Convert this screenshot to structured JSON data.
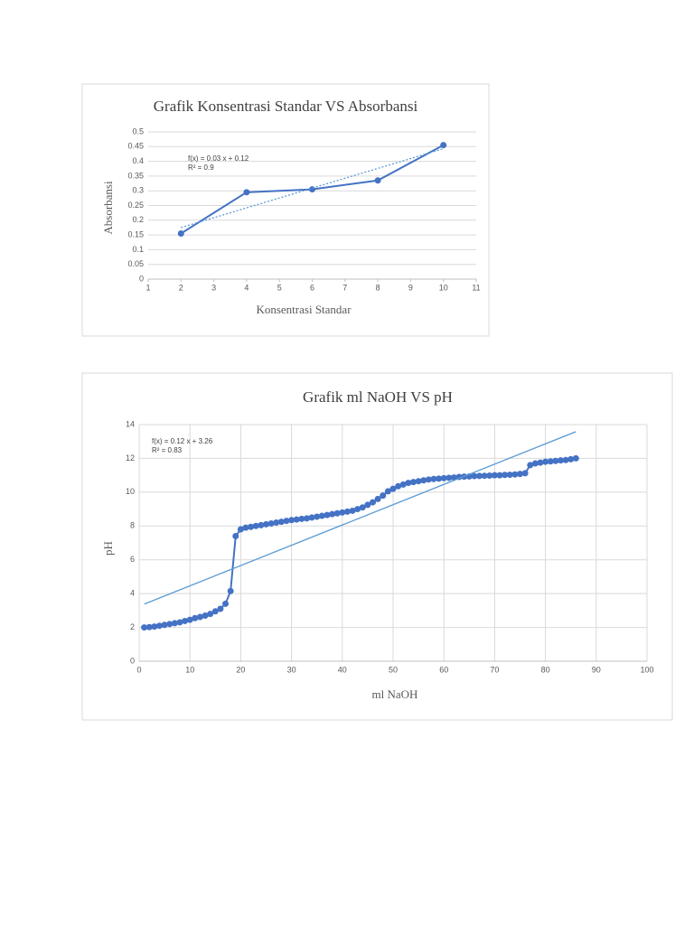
{
  "chart_data": [
    {
      "type": "line",
      "title": "Grafik Konsentrasi Standar VS Absorbansi",
      "xlabel": "Konsentrasi Standar",
      "ylabel": "Absorbansi",
      "annotations": [
        "f(x) = 0.03 x + 0.12",
        "R² = 0.9"
      ],
      "x": [
        2,
        4,
        6,
        8,
        10
      ],
      "series": [
        {
          "color": "#4472c4",
          "values": [
            0.155,
            0.295,
            0.305,
            0.335,
            0.455
          ]
        }
      ],
      "trendline": {
        "color": "#5b9bd5",
        "x": [
          2,
          10
        ],
        "values": [
          0.175,
          0.443
        ]
      },
      "xlim": [
        1,
        11
      ],
      "xticks": [
        1,
        2,
        3,
        4,
        5,
        6,
        7,
        8,
        9,
        10,
        11
      ],
      "ylim": [
        0,
        0.5
      ],
      "yticks": [
        0,
        0.05,
        0.1,
        0.15,
        0.2,
        0.25,
        0.3,
        0.35,
        0.4,
        0.45,
        0.5
      ],
      "grid": "y"
    },
    {
      "type": "line",
      "title": "Grafik ml NaOH VS pH",
      "xlabel": "ml NaOH",
      "ylabel": "pH",
      "annotations": [
        "f(x) = 0.12 x + 3.26",
        "R² = 0.83"
      ],
      "x": [
        1,
        2,
        3,
        4,
        5,
        6,
        7,
        8,
        9,
        10,
        11,
        12,
        13,
        14,
        15,
        16,
        17,
        18,
        19,
        20,
        21,
        22,
        23,
        24,
        25,
        26,
        27,
        28,
        29,
        30,
        31,
        32,
        33,
        34,
        35,
        36,
        37,
        38,
        39,
        40,
        41,
        42,
        43,
        44,
        45,
        46,
        47,
        48,
        49,
        50,
        51,
        52,
        53,
        54,
        55,
        56,
        57,
        58,
        59,
        60,
        61,
        62,
        63,
        64,
        65,
        66,
        67,
        68,
        69,
        70,
        71,
        72,
        73,
        74,
        75,
        76,
        77,
        78,
        79,
        80,
        81,
        82,
        83,
        84,
        85,
        86
      ],
      "series": [
        {
          "color": "#4472c4",
          "values": [
            2.0,
            2.02,
            2.05,
            2.1,
            2.15,
            2.2,
            2.25,
            2.3,
            2.38,
            2.45,
            2.55,
            2.62,
            2.7,
            2.8,
            2.95,
            3.1,
            3.4,
            4.15,
            7.4,
            7.8,
            7.9,
            7.95,
            8.0,
            8.05,
            8.1,
            8.15,
            8.2,
            8.25,
            8.3,
            8.35,
            8.38,
            8.42,
            8.45,
            8.5,
            8.55,
            8.6,
            8.65,
            8.7,
            8.75,
            8.8,
            8.85,
            8.9,
            9.0,
            9.1,
            9.25,
            9.4,
            9.6,
            9.8,
            10.05,
            10.2,
            10.35,
            10.45,
            10.55,
            10.6,
            10.65,
            10.7,
            10.75,
            10.78,
            10.8,
            10.83,
            10.85,
            10.87,
            10.9,
            10.92,
            10.93,
            10.95,
            10.96,
            10.97,
            10.98,
            11.0,
            11.0,
            11.02,
            11.03,
            11.05,
            11.08,
            11.12,
            11.6,
            11.7,
            11.75,
            11.8,
            11.82,
            11.85,
            11.88,
            11.9,
            11.95,
            12.0
          ]
        }
      ],
      "trendline": {
        "color": "#5b9bd5",
        "x": [
          1,
          86
        ],
        "values": [
          3.38,
          13.58
        ]
      },
      "xlim": [
        0,
        100
      ],
      "xticks": [
        0,
        10,
        20,
        30,
        40,
        50,
        60,
        70,
        80,
        90,
        100
      ],
      "ylim": [
        0,
        14
      ],
      "yticks": [
        0,
        2,
        4,
        6,
        8,
        10,
        12,
        14
      ],
      "grid": "both"
    }
  ]
}
